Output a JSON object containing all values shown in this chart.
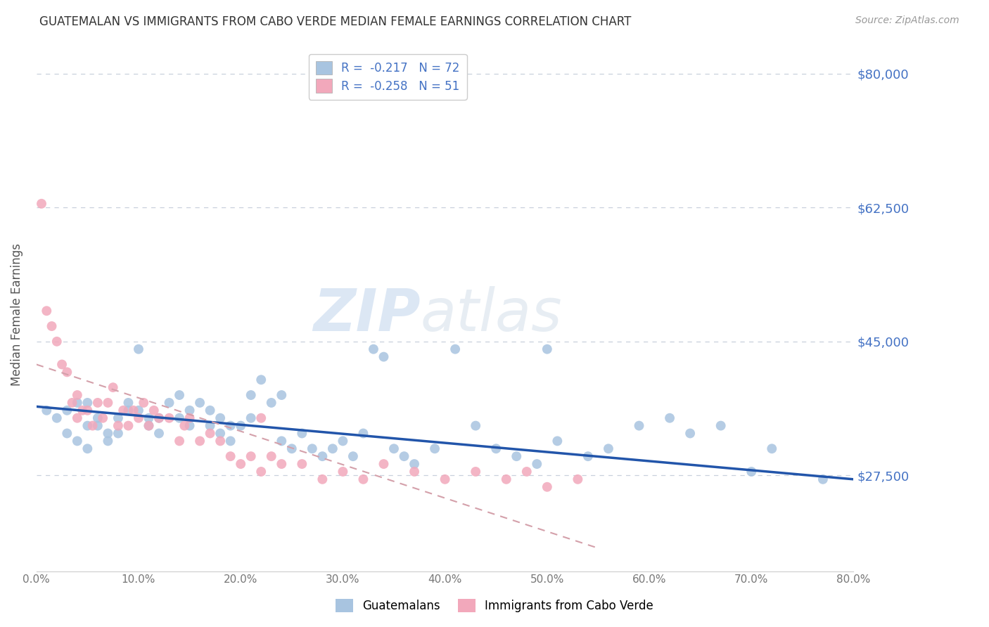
{
  "title": "GUATEMALAN VS IMMIGRANTS FROM CABO VERDE MEDIAN FEMALE EARNINGS CORRELATION CHART",
  "source": "Source: ZipAtlas.com",
  "ylabel": "Median Female Earnings",
  "ylim": [
    15000,
    82000
  ],
  "xlim": [
    0.0,
    0.8
  ],
  "watermark_zip": "ZIP",
  "watermark_atlas": "atlas",
  "legend_r1": "R =  -0.217   N = 72",
  "legend_r2": "R =  -0.258   N = 51",
  "color_blue": "#a8c4e0",
  "color_pink": "#f2a8bb",
  "color_blue_text": "#4472c4",
  "color_trend_blue": "#2255aa",
  "color_trend_pink": "#d4a0aa",
  "color_grid": "#c8d0dc",
  "ytick_vals": [
    27500,
    45000,
    62500,
    80000
  ],
  "ytick_labels": [
    "$27,500",
    "$45,000",
    "$62,500",
    "$80,000"
  ],
  "xtick_vals": [
    0.0,
    0.1,
    0.2,
    0.3,
    0.4,
    0.5,
    0.6,
    0.7,
    0.8
  ],
  "guatemalans_x": [
    0.01,
    0.02,
    0.03,
    0.03,
    0.04,
    0.04,
    0.05,
    0.05,
    0.05,
    0.06,
    0.06,
    0.07,
    0.07,
    0.08,
    0.08,
    0.09,
    0.09,
    0.1,
    0.1,
    0.11,
    0.11,
    0.12,
    0.12,
    0.13,
    0.14,
    0.14,
    0.15,
    0.15,
    0.16,
    0.17,
    0.17,
    0.18,
    0.18,
    0.19,
    0.19,
    0.2,
    0.21,
    0.21,
    0.22,
    0.23,
    0.24,
    0.24,
    0.25,
    0.26,
    0.27,
    0.28,
    0.29,
    0.3,
    0.31,
    0.32,
    0.33,
    0.34,
    0.35,
    0.36,
    0.37,
    0.39,
    0.41,
    0.43,
    0.45,
    0.47,
    0.49,
    0.5,
    0.51,
    0.54,
    0.56,
    0.59,
    0.62,
    0.64,
    0.67,
    0.7,
    0.72,
    0.77
  ],
  "guatemalans_y": [
    36000,
    35000,
    33000,
    36000,
    37000,
    32000,
    34000,
    37000,
    31000,
    35000,
    34000,
    32000,
    33000,
    35000,
    33000,
    36000,
    37000,
    36000,
    44000,
    34000,
    35000,
    33000,
    35000,
    37000,
    35000,
    38000,
    36000,
    34000,
    37000,
    34000,
    36000,
    33000,
    35000,
    34000,
    32000,
    34000,
    38000,
    35000,
    40000,
    37000,
    38000,
    32000,
    31000,
    33000,
    31000,
    30000,
    31000,
    32000,
    30000,
    33000,
    44000,
    43000,
    31000,
    30000,
    29000,
    31000,
    44000,
    34000,
    31000,
    30000,
    29000,
    44000,
    32000,
    30000,
    31000,
    34000,
    35000,
    33000,
    34000,
    28000,
    31000,
    27000
  ],
  "caboverde_x": [
    0.005,
    0.01,
    0.015,
    0.02,
    0.025,
    0.03,
    0.035,
    0.04,
    0.04,
    0.045,
    0.05,
    0.055,
    0.06,
    0.065,
    0.07,
    0.075,
    0.08,
    0.085,
    0.09,
    0.095,
    0.1,
    0.105,
    0.11,
    0.115,
    0.12,
    0.13,
    0.14,
    0.145,
    0.15,
    0.16,
    0.17,
    0.18,
    0.19,
    0.2,
    0.21,
    0.22,
    0.23,
    0.24,
    0.26,
    0.28,
    0.3,
    0.32,
    0.34,
    0.37,
    0.4,
    0.43,
    0.46,
    0.48,
    0.5,
    0.53,
    0.22
  ],
  "caboverde_y": [
    63000,
    49000,
    47000,
    45000,
    42000,
    41000,
    37000,
    38000,
    35000,
    36000,
    36000,
    34000,
    37000,
    35000,
    37000,
    39000,
    34000,
    36000,
    34000,
    36000,
    35000,
    37000,
    34000,
    36000,
    35000,
    35000,
    32000,
    34000,
    35000,
    32000,
    33000,
    32000,
    30000,
    29000,
    30000,
    28000,
    30000,
    29000,
    29000,
    27000,
    28000,
    27000,
    29000,
    28000,
    27000,
    28000,
    27000,
    28000,
    26000,
    27000,
    35000
  ]
}
